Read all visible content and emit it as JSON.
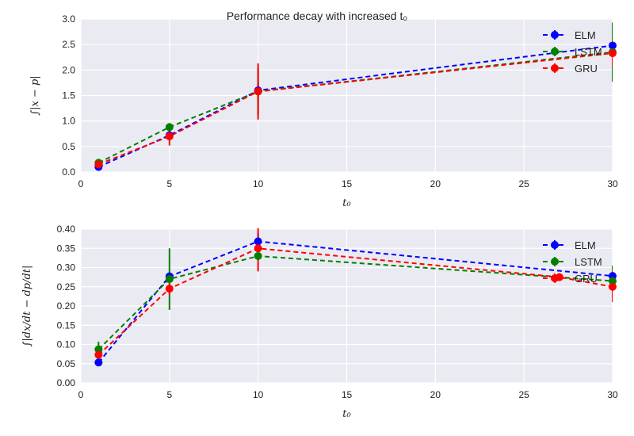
{
  "figure": {
    "title": "Performance decay with increased t₀"
  },
  "chart_data": [
    {
      "type": "line",
      "xlabel": "t₀",
      "ylabel": "∫|x − p|",
      "xlim": [
        0,
        30
      ],
      "ylim": [
        0,
        3.0
      ],
      "xticks": [
        "0",
        "5",
        "10",
        "15",
        "20",
        "25",
        "30"
      ],
      "yticks": [
        "0.0",
        "0.5",
        "1.0",
        "1.5",
        "2.0",
        "2.5",
        "3.0"
      ],
      "grid": true,
      "legend": "top-right",
      "x": [
        1,
        5,
        10,
        30
      ],
      "series": [
        {
          "name": "ELM",
          "color": "#0000ff",
          "values": [
            0.1,
            0.72,
            1.6,
            2.48
          ],
          "errors": [
            0.05,
            0.08,
            0.15,
            0.3
          ]
        },
        {
          "name": "LSTM",
          "color": "#008000",
          "values": [
            0.18,
            0.88,
            1.58,
            2.35
          ],
          "errors": [
            0.05,
            0.08,
            0.45,
            0.58
          ]
        },
        {
          "name": "GRU",
          "color": "#ff0000",
          "values": [
            0.15,
            0.7,
            1.58,
            2.33
          ],
          "errors": [
            0.05,
            0.18,
            0.55,
            0.25
          ]
        }
      ]
    },
    {
      "type": "line",
      "xlabel": "t₀",
      "ylabel": "∫|dx/dt − dp/dt|",
      "xlim": [
        0,
        30
      ],
      "ylim": [
        0,
        0.4
      ],
      "xticks": [
        "0",
        "5",
        "10",
        "15",
        "20",
        "25",
        "30"
      ],
      "yticks": [
        "0.00",
        "0.05",
        "0.10",
        "0.15",
        "0.20",
        "0.25",
        "0.30",
        "0.35",
        "0.40"
      ],
      "grid": true,
      "legend": "top-right",
      "x": [
        1,
        5,
        10,
        27,
        30
      ],
      "series": [
        {
          "name": "ELM",
          "color": "#0000ff",
          "values": [
            0.053,
            0.277,
            0.368,
            null,
            0.278
          ],
          "errors": [
            0.005,
            0.01,
            0.02,
            null,
            0.01
          ]
        },
        {
          "name": "LSTM",
          "color": "#008000",
          "values": [
            0.087,
            0.27,
            0.33,
            null,
            0.265
          ],
          "errors": [
            0.02,
            0.08,
            0.01,
            null,
            0.04
          ]
        },
        {
          "name": "GRU",
          "color": "#ff0000",
          "values": [
            0.073,
            0.245,
            0.35,
            0.275,
            0.25
          ],
          "errors": [
            0.015,
            0.015,
            0.06,
            0.01,
            0.04
          ]
        }
      ]
    }
  ]
}
